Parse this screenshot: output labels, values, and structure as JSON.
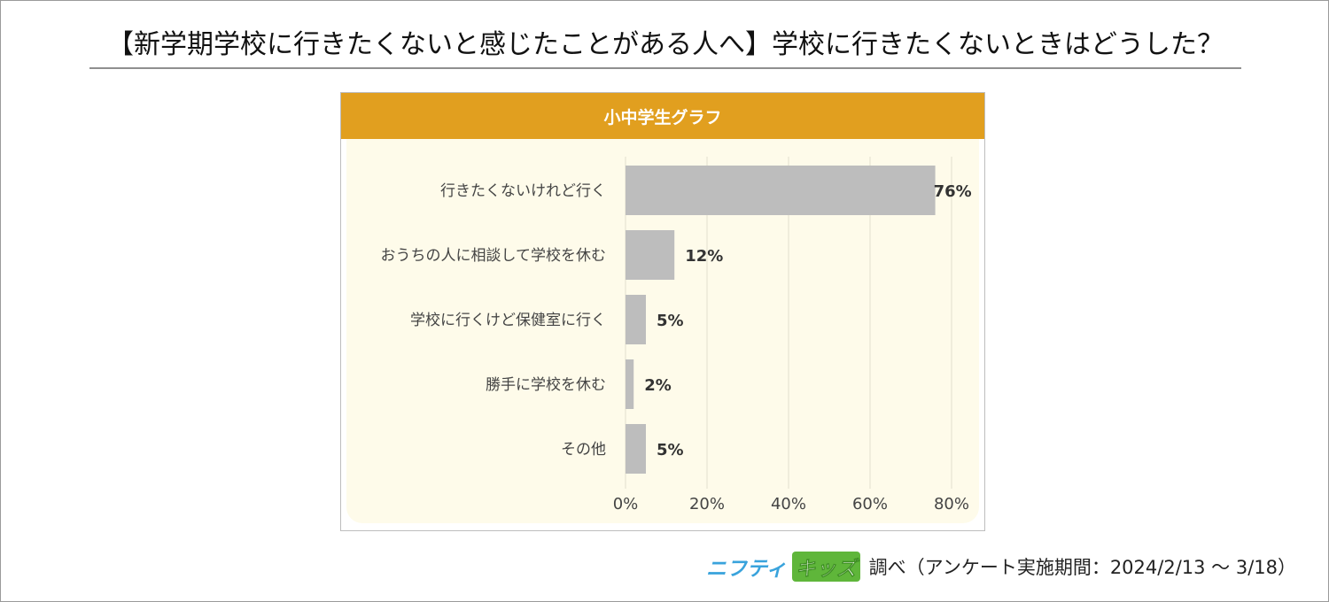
{
  "page": {
    "title": "【新学期学校に行きたくないと感じたことがある人へ】学校に行きたくないときはどうした？"
  },
  "footer": {
    "brand_part1": "ニフティ",
    "brand_part2": "キッズ",
    "source": "調べ（アンケート実施期間：2024/2/13 ～ 3/18）"
  },
  "colors": {
    "header": "#e19f1f",
    "bar": "#bdbdbd",
    "plot_background": "#fefbea"
  },
  "chart_data": {
    "type": "bar",
    "orientation": "horizontal",
    "title": "小中学生グラフ",
    "categories": [
      "行きたくないけれど行く",
      "おうちの人に相談して学校を休む",
      "学校に行くけど保健室に行く",
      "勝手に学校を休む",
      "その他"
    ],
    "values": [
      76,
      12,
      5,
      2,
      5
    ],
    "value_labels": [
      "76%",
      "12%",
      "5%",
      "2%",
      "5%"
    ],
    "xlim": [
      0,
      80
    ],
    "xticks": [
      0,
      20,
      40,
      60,
      80
    ],
    "xtick_labels": [
      "0%",
      "20%",
      "40%",
      "60%",
      "80%"
    ],
    "grid": true,
    "legend": "none"
  }
}
